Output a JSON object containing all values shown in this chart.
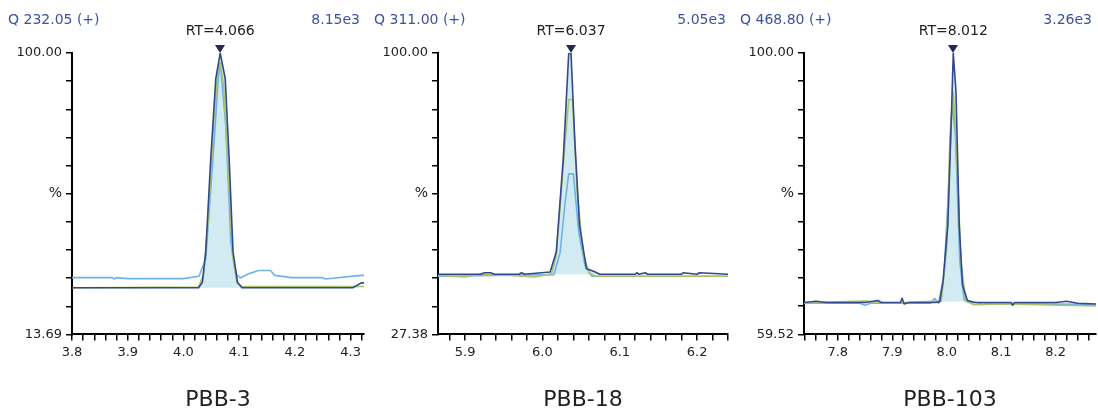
{
  "chart_data": [
    {
      "type": "line",
      "title": "Q 232.05 (+)",
      "subtitle": "8.15e3",
      "xlabel": "PBB-3",
      "ylabel": "%",
      "xlim": [
        3.8,
        4.324
      ],
      "xticks": [
        3.8,
        {
          "value": 3.82,
          "label": null
        },
        {
          "value": 3.84,
          "label": null
        },
        {
          "value": 3.86,
          "label": null
        },
        {
          "value": 3.88,
          "label": null
        },
        3.9,
        {
          "value": 3.92,
          "label": null
        },
        {
          "value": 3.94,
          "label": null
        },
        {
          "value": 3.96,
          "label": null
        },
        {
          "value": 3.98,
          "label": null
        },
        {
          "value": 4,
          "label": "4.0"
        },
        {
          "value": 4.02,
          "label": null
        },
        {
          "value": 4.04,
          "label": null
        },
        {
          "value": 4.06,
          "label": null
        },
        {
          "value": 4.08,
          "label": null
        },
        4.1,
        {
          "value": 4.12,
          "label": null
        },
        {
          "value": 4.14,
          "label": null
        },
        {
          "value": 4.16,
          "label": null
        },
        {
          "value": 4.18,
          "label": null
        },
        4.2,
        {
          "value": 4.22,
          "label": null
        },
        {
          "value": 4.24,
          "label": null
        },
        {
          "value": 4.26,
          "label": null
        },
        {
          "value": 4.28,
          "label": null
        },
        4.3,
        {
          "value": 4.32,
          "label": null
        }
      ],
      "ylim": [
        13.69,
        100
      ],
      "yticks": [
        13.69,
        {
          "value": 22.32,
          "label": null
        },
        {
          "value": 30.95,
          "label": null
        },
        {
          "value": 39.58,
          "label": null
        },
        {
          "value": 48.21,
          "label": null
        },
        {
          "value": 56.85,
          "label": null
        },
        {
          "value": 65.48,
          "label": null
        },
        {
          "value": 74.11,
          "label": null
        },
        {
          "value": 82.74,
          "label": null
        },
        {
          "value": 91.37,
          "label": null
        },
        {
          "value": 100,
          "label": "100.00"
        }
      ],
      "annotations": [
        {
          "text": "RT=4.066",
          "x": 4.066,
          "y": 100
        }
      ],
      "series": [
        {
          "type": "area",
          "color": "#d2ebf2",
          "x": [
            4.027,
            4.034,
            4.04,
            4.049,
            4.058,
            4.066,
            4.075,
            4.082,
            4.089,
            4.097,
            4.105
          ],
          "values": [
            28.0,
            29.7,
            39.0,
            67.6,
            92.1,
            100,
            92.1,
            67.6,
            39.0,
            29.7,
            28.0
          ]
        },
        {
          "type": "line",
          "color": "#6db3e6",
          "x": [
            3.8,
            3.872,
            3.876,
            3.88,
            3.9,
            3.93,
            4.0,
            4.028,
            4.04,
            4.052,
            4.063,
            4.066,
            4.076,
            4.085,
            4.094,
            4.102,
            4.117,
            4.135,
            4.156,
            4.164,
            4.194,
            4.25,
            4.254,
            4.319,
            4.324
          ],
          "values": [
            31.1,
            31.1,
            30.7,
            31.1,
            30.8,
            30.8,
            30.8,
            31.5,
            36.9,
            65.5,
            93.1,
            97,
            77.8,
            42.0,
            32.3,
            31.0,
            32.3,
            33.3,
            33.3,
            31.8,
            31.1,
            31.1,
            30.7,
            31.8,
            31.8
          ]
        },
        {
          "type": "line",
          "color": "#a9c46a",
          "x": [
            3.8,
            4.027,
            4.036,
            4.045,
            4.054,
            4.062,
            4.066,
            4.072,
            4.08,
            4.088,
            4.096,
            4.104,
            4.324
          ],
          "values": [
            28.0,
            28.2,
            32,
            50,
            78,
            95,
            97,
            90,
            65,
            38,
            29.5,
            28.4,
            28.4
          ]
        },
        {
          "type": "line",
          "color": "#34488f",
          "x": [
            3.8,
            4.027,
            4.034,
            4.04,
            4.049,
            4.058,
            4.066,
            4.075,
            4.082,
            4.089,
            4.097,
            4.105,
            4.304,
            4.319,
            4.324
          ],
          "values": [
            28.0,
            28.0,
            29.7,
            39.0,
            67.6,
            92.1,
            100,
            92.1,
            67.6,
            39.0,
            29.7,
            28.0,
            28.0,
            29.5,
            29.5
          ]
        }
      ]
    },
    {
      "type": "line",
      "title": "Q 311.00 (+)",
      "subtitle": "5.05e3",
      "xlabel": "PBB-18",
      "ylabel": "%",
      "xlim": [
        5.865,
        6.24
      ],
      "xticks": [
        {
          "value": 5.88,
          "label": null
        },
        5.9,
        {
          "value": 5.92,
          "label": null
        },
        {
          "value": 5.94,
          "label": null
        },
        {
          "value": 5.96,
          "label": null
        },
        {
          "value": 5.98,
          "label": null
        },
        {
          "value": 6,
          "label": "6.0"
        },
        {
          "value": 6.02,
          "label": null
        },
        {
          "value": 6.04,
          "label": null
        },
        {
          "value": 6.06,
          "label": null
        },
        {
          "value": 6.08,
          "label": null
        },
        6.1,
        {
          "value": 6.12,
          "label": null
        },
        {
          "value": 6.14,
          "label": null
        },
        {
          "value": 6.16,
          "label": null
        },
        {
          "value": 6.18,
          "label": null
        },
        6.2,
        {
          "value": 6.22,
          "label": null
        },
        {
          "value": 6.24,
          "label": null
        }
      ],
      "ylim": [
        27.38,
        100
      ],
      "yticks": [
        27.38,
        {
          "value": 34.64,
          "label": null
        },
        {
          "value": 41.9,
          "label": null
        },
        {
          "value": 49.17,
          "label": null
        },
        {
          "value": 56.43,
          "label": null
        },
        {
          "value": 63.69,
          "label": null
        },
        {
          "value": 70.95,
          "label": null
        },
        {
          "value": 78.21,
          "label": null
        },
        {
          "value": 85.48,
          "label": null
        },
        {
          "value": 92.74,
          "label": null
        },
        {
          "value": 100,
          "label": "100.00"
        }
      ],
      "annotations": [
        {
          "text": "RT=6.037",
          "x": 6.037,
          "y": 100
        }
      ],
      "series": [
        {
          "type": "area",
          "color": "#d2ebf2",
          "x": [
            6.005,
            6.01,
            6.018,
            6.027,
            6.034,
            6.037,
            6.042,
            6.048,
            6.057,
            6.067,
            6.074
          ],
          "values": [
            42.9,
            43.5,
            48.7,
            72.8,
            99.8,
            100,
            77.0,
            55.5,
            44.3,
            43.6,
            42.9
          ]
        },
        {
          "type": "line",
          "color": "#6db3e6",
          "x": [
            5.865,
            6.015,
            6.023,
            6.029,
            6.034,
            6.04,
            6.047,
            6.055,
            6.064,
            6.24
          ],
          "values": [
            42.4,
            42.8,
            48.6,
            60.7,
            68.8,
            68.8,
            53.8,
            45.2,
            42.4,
            42.4
          ]
        },
        {
          "type": "line",
          "color": "#a9c46a",
          "x": [
            5.865,
            5.9,
            5.92,
            5.96,
            5.99,
            6.012,
            6.018,
            6.027,
            6.034,
            6.039,
            6.045,
            6.053,
            6.061,
            6.07,
            6.24
          ],
          "values": [
            42.6,
            42.2,
            42.9,
            42.6,
            42.2,
            43.0,
            47.8,
            71.1,
            88.0,
            88.0,
            64.1,
            47.8,
            43.0,
            42.4,
            42.4
          ]
        },
        {
          "type": "line",
          "color": "#34488f",
          "x": [
            5.865,
            5.92,
            5.925,
            5.933,
            5.938,
            5.97,
            5.973,
            5.977,
            6.01,
            6.018,
            6.027,
            6.034,
            6.037,
            6.042,
            6.048,
            6.057,
            6.067,
            6.074,
            6.12,
            6.122,
            6.125,
            6.133,
            6.136,
            6.18,
            6.182,
            6.2,
            6.203,
            6.24
          ],
          "values": [
            42.9,
            42.9,
            43.3,
            43.3,
            42.9,
            42.9,
            43.3,
            42.9,
            43.5,
            48.7,
            72.8,
            99.8,
            100,
            77.0,
            55.5,
            44.3,
            43.6,
            42.9,
            42.9,
            43.3,
            42.9,
            43.3,
            42.9,
            42.9,
            43.3,
            42.9,
            43.3,
            42.9
          ]
        }
      ]
    },
    {
      "type": "line",
      "title": "Q 468.80 (+)",
      "subtitle": "3.26e3",
      "xlabel": "PBB-103",
      "ylabel": "%",
      "xlim": [
        7.738,
        8.274
      ],
      "xticks": [
        {
          "value": 7.74,
          "label": null
        },
        {
          "value": 7.76,
          "label": null
        },
        {
          "value": 7.78,
          "label": null
        },
        7.8,
        {
          "value": 7.82,
          "label": null
        },
        {
          "value": 7.84,
          "label": null
        },
        {
          "value": 7.86,
          "label": null
        },
        {
          "value": 7.88,
          "label": null
        },
        7.9,
        {
          "value": 7.92,
          "label": null
        },
        {
          "value": 7.94,
          "label": null
        },
        {
          "value": 7.96,
          "label": null
        },
        {
          "value": 7.98,
          "label": null
        },
        {
          "value": 8,
          "label": "8.0"
        },
        {
          "value": 8.02,
          "label": null
        },
        {
          "value": 8.04,
          "label": null
        },
        {
          "value": 8.06,
          "label": null
        },
        {
          "value": 8.08,
          "label": null
        },
        8.1,
        {
          "value": 8.12,
          "label": null
        },
        {
          "value": 8.14,
          "label": null
        },
        {
          "value": 8.16,
          "label": null
        },
        {
          "value": 8.18,
          "label": null
        },
        8.2,
        {
          "value": 8.22,
          "label": null
        },
        {
          "value": 8.24,
          "label": null
        },
        {
          "value": 8.26,
          "label": null
        }
      ],
      "ylim": [
        59.52,
        100
      ],
      "yticks": [
        59.52,
        {
          "value": 63.57,
          "label": null
        },
        {
          "value": 67.62,
          "label": null
        },
        {
          "value": 71.66,
          "label": null
        },
        {
          "value": 75.71,
          "label": null
        },
        {
          "value": 79.76,
          "label": null
        },
        {
          "value": 83.81,
          "label": null
        },
        {
          "value": 87.86,
          "label": null
        },
        {
          "value": 91.9,
          "label": null
        },
        {
          "value": 95.95,
          "label": null
        },
        {
          "value": 100,
          "label": "100.00"
        }
      ],
      "annotations": [
        {
          "text": "RT=8.012",
          "x": 8.012,
          "y": 100
        }
      ],
      "series": [
        {
          "type": "area",
          "color": "#d2ebf2",
          "x": [
            7.987,
            7.993,
            8.002,
            8.009,
            8.012,
            8.017,
            8.023,
            8.029,
            8.038
          ],
          "values": [
            64.2,
            67.0,
            75.2,
            92.0,
            100,
            94.4,
            75.2,
            66.6,
            64.4
          ]
        },
        {
          "type": "line",
          "color": "#6db3e6",
          "x": [
            7.738,
            7.84,
            7.85,
            7.86,
            7.97,
            7.978,
            7.985,
            7.995,
            8.003,
            8.01,
            8.016,
            8.024,
            8.032,
            8.06,
            8.065,
            8.07,
            8.274
          ],
          "values": [
            64.0,
            64.0,
            63.7,
            64.0,
            64.0,
            64.7,
            64.0,
            68,
            80,
            93,
            88,
            70,
            64.5,
            64.0,
            63.8,
            64.0,
            63.8
          ]
        },
        {
          "type": "line",
          "color": "#a9c46a",
          "x": [
            7.738,
            7.8,
            7.85,
            7.9,
            7.95,
            7.99,
            8.0,
            8.006,
            8.012,
            8.018,
            8.026,
            8.035,
            8.05,
            8.1,
            8.274
          ],
          "values": [
            64.0,
            64.2,
            64.3,
            64.0,
            64.2,
            64.3,
            72,
            88,
            94.4,
            86,
            70,
            64.3,
            63.8,
            63.9,
            63.6
          ]
        },
        {
          "type": "line",
          "color": "#34488f",
          "x": [
            7.738,
            7.76,
            7.78,
            7.8,
            7.85,
            7.874,
            7.88,
            7.915,
            7.918,
            7.922,
            7.93,
            7.978,
            7.987,
            7.993,
            8.002,
            8.009,
            8.012,
            8.017,
            8.023,
            8.029,
            8.038,
            8.05,
            8.118,
            8.121,
            8.124,
            8.2,
            8.22,
            8.24,
            8.274
          ],
          "values": [
            64.1,
            64.3,
            64.1,
            64.1,
            64.1,
            64.4,
            64.1,
            64.1,
            64.7,
            63.9,
            64.1,
            64.1,
            64.2,
            67.0,
            75.2,
            92.0,
            100,
            94.4,
            75.2,
            66.6,
            64.4,
            64.1,
            64.1,
            63.7,
            64.1,
            64.1,
            64.3,
            64.0,
            63.9
          ]
        }
      ]
    }
  ]
}
